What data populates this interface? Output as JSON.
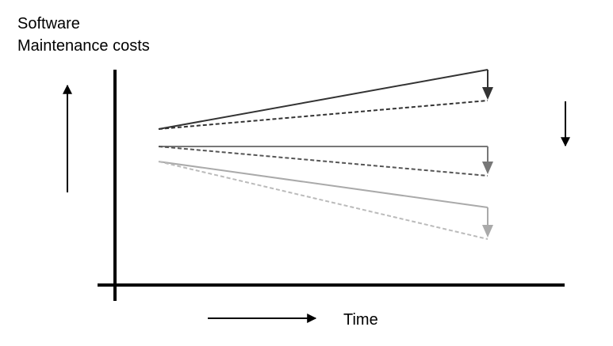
{
  "y_label": {
    "line1": "Software",
    "line2": "Maintenance costs"
  },
  "x_label": "Time"
}
